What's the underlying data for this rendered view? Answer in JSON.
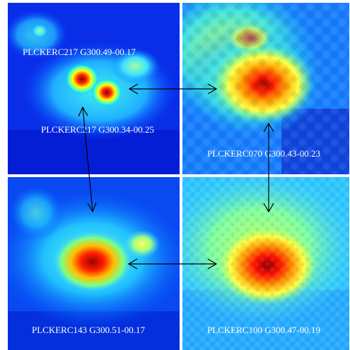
{
  "panels": {
    "top_left": {
      "labels": [
        "PLCKERC217 G300.49-00.17",
        "PLCKERC217 G300.34-00.25"
      ]
    },
    "top_right": {
      "labels": [
        "PLCKERC070 G300.43-00.23"
      ]
    },
    "bottom_left": {
      "labels": [
        "PLCKERC143 G300.51-00.17"
      ]
    },
    "bottom_right": {
      "labels": [
        "PLCKERC100 G300.47-00.19"
      ]
    }
  },
  "colors": {
    "divider": "#ffffff",
    "arrow": "#000000",
    "label_text": "#ffffff",
    "colormap": [
      "#00008f",
      "#0000ff",
      "#0080ff",
      "#00ffff",
      "#80ff80",
      "#ffff00",
      "#ff8000",
      "#ff0000",
      "#800000"
    ]
  }
}
